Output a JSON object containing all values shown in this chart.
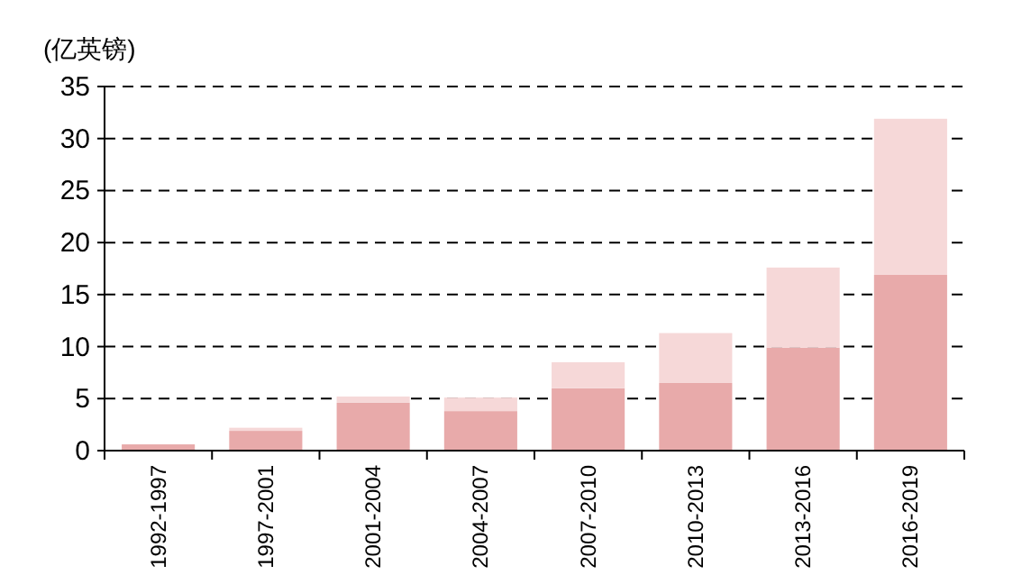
{
  "chart_data": {
    "type": "bar",
    "stacked": true,
    "ylabel": "(亿英镑)",
    "categories": [
      "1992-1997",
      "1997-2001",
      "2001-2004",
      "2004-2007",
      "2007-2010",
      "2010-2013",
      "2013-2016",
      "2016-2019"
    ],
    "series": [
      {
        "color": "#e8aaaa",
        "values": [
          0.6,
          1.9,
          4.6,
          3.8,
          6.0,
          6.5,
          9.9,
          16.9
        ]
      },
      {
        "color": "#f6d8d8",
        "values": [
          0,
          0.3,
          0.6,
          1.3,
          2.5,
          4.8,
          7.7,
          15.0
        ]
      }
    ],
    "ylim": [
      0,
      35
    ],
    "yticks": [
      0,
      5,
      10,
      15,
      20,
      25,
      30,
      35
    ],
    "grid": "y"
  }
}
